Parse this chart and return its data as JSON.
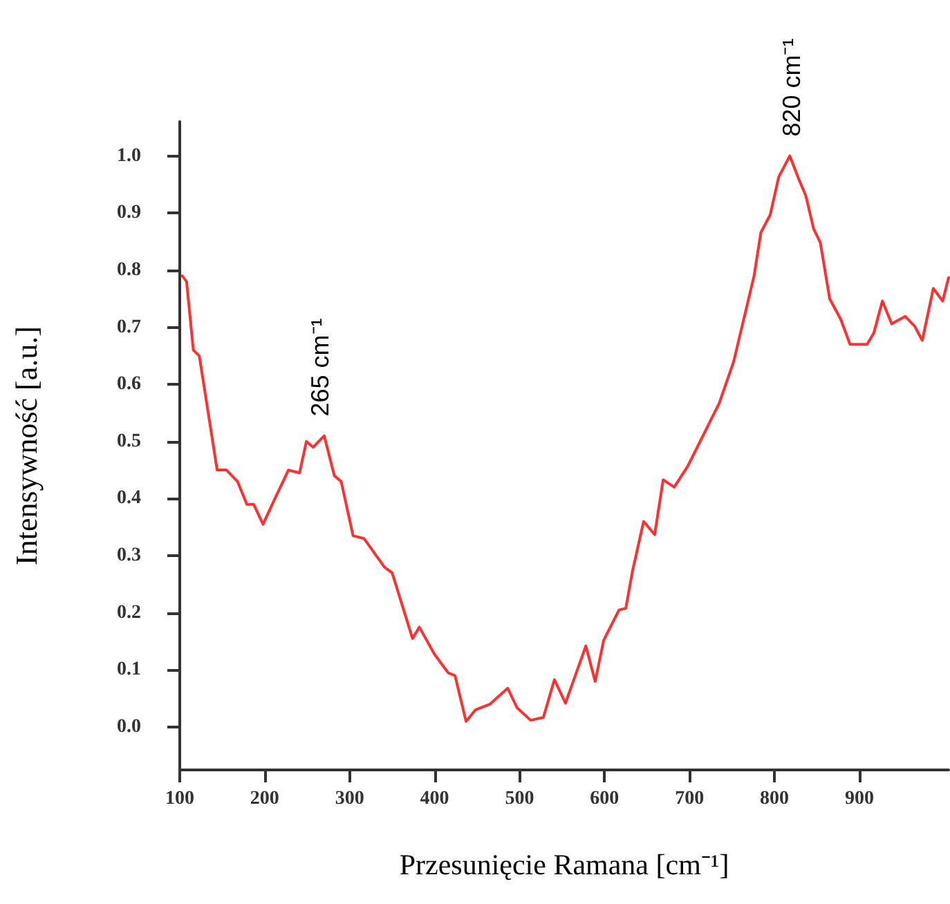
{
  "chart_data": {
    "type": "line",
    "xlabel": "Przesunięcie Ramana [cm⁻¹]",
    "ylabel": "Intensywność [a.u.]",
    "xlim": [
      100,
      1005
    ],
    "xticks": [
      100,
      200,
      300,
      400,
      500,
      600,
      700,
      800,
      900
    ],
    "ylim": [
      -0.075,
      1.06
    ],
    "yticks": [
      {
        "value": 0,
        "label": "0.0"
      },
      {
        "value": 0.1,
        "label": "0.1"
      },
      {
        "value": 0.2,
        "label": "0.2"
      },
      {
        "value": 0.3,
        "label": "0.3"
      },
      {
        "value": 0.4,
        "label": "0.4"
      },
      {
        "value": 0.5,
        "label": "0.5"
      },
      {
        "value": 0.6,
        "label": "0.6"
      },
      {
        "value": 0.7,
        "label": "0.7"
      },
      {
        "value": 0.8,
        "label": "0.8"
      },
      {
        "value": 0.9,
        "label": "0.9"
      },
      {
        "value": 1,
        "label": "1.0"
      }
    ],
    "grid": false,
    "marker": "none",
    "line_style": "solid",
    "series": [
      {
        "color": "#ff3030",
        "x": [
          103,
          108,
          116,
          123,
          144,
          155,
          168,
          179,
          187,
          198,
          212,
          228,
          241,
          249,
          257,
          270,
          282,
          290,
          304,
          317,
          341,
          350,
          374,
          382,
          400,
          416,
          424,
          437,
          448,
          465,
          486,
          497,
          513,
          528,
          541,
          554,
          578,
          589,
          599,
          617,
          625,
          633,
          646,
          659,
          669,
          682,
          698,
          735,
          752,
          776,
          784,
          795,
          805,
          818,
          829,
          837,
          846,
          854,
          865,
          878,
          889,
          909,
          917,
          927,
          938,
          954,
          965,
          974,
          987,
          998,
          1005
        ],
        "values": [
          0.79,
          0.78,
          0.66,
          0.65,
          0.45,
          0.45,
          0.43,
          0.39,
          0.39,
          0.355,
          0.4,
          0.45,
          0.445,
          0.5,
          0.49,
          0.51,
          0.44,
          0.43,
          0.335,
          0.33,
          0.28,
          0.27,
          0.155,
          0.175,
          0.127,
          0.095,
          0.09,
          0.01,
          0.03,
          0.04,
          0.068,
          0.034,
          0.012,
          0.017,
          0.083,
          0.042,
          0.142,
          0.08,
          0.152,
          0.205,
          0.208,
          0.274,
          0.36,
          0.337,
          0.433,
          0.42,
          0.457,
          0.567,
          0.64,
          0.79,
          0.866,
          0.897,
          0.963,
          1.0,
          0.958,
          0.93,
          0.873,
          0.848,
          0.75,
          0.714,
          0.67,
          0.67,
          0.69,
          0.746,
          0.706,
          0.719,
          0.702,
          0.677,
          0.768,
          0.746,
          0.787
        ]
      }
    ],
    "annotations": [
      {
        "text": "265 cm⁻¹",
        "x": 265,
        "y": 0.51
      },
      {
        "text": "820 cm⁻¹",
        "x": 820,
        "y": 1.0
      }
    ]
  }
}
